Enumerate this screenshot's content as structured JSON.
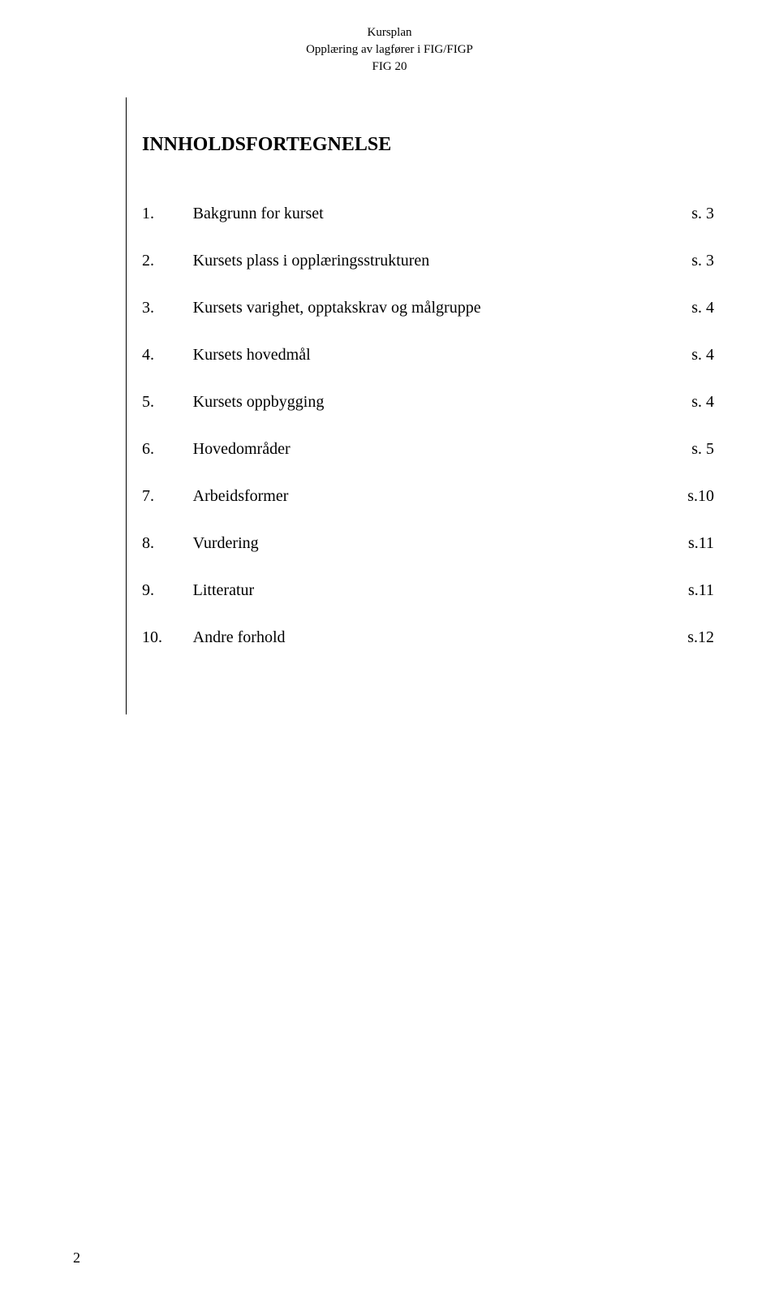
{
  "header": {
    "line1": "Kursplan",
    "line2": "Opplæring av lagfører i FIG/FIGP",
    "line3": "FIG 20"
  },
  "title": "INNHOLDSFORTEGNELSE",
  "toc": [
    {
      "num": "1.",
      "desc": "Bakgrunn for kurset",
      "page": "s. 3"
    },
    {
      "num": "2.",
      "desc": "Kursets plass i opplæringsstrukturen",
      "page": "s. 3"
    },
    {
      "num": "3.",
      "desc": "Kursets varighet, opptakskrav og målgruppe",
      "page": "s. 4"
    },
    {
      "num": "4.",
      "desc": "Kursets hovedmål",
      "page": "s. 4"
    },
    {
      "num": "5.",
      "desc": "Kursets oppbygging",
      "page": "s. 4"
    },
    {
      "num": "6.",
      "desc": "Hovedområder",
      "page": "s. 5"
    },
    {
      "num": "7.",
      "desc": "Arbeidsformer",
      "page": "s.10"
    },
    {
      "num": "8.",
      "desc": "Vurdering",
      "page": "s.11"
    },
    {
      "num": "9.",
      "desc": "Litteratur",
      "page": "s.11"
    },
    {
      "num": "10.",
      "desc": "Andre forhold",
      "page": "s.12"
    }
  ],
  "page_number": "2",
  "styling": {
    "background_color": "#ffffff",
    "text_color": "#000000",
    "font_family": "Times New Roman",
    "header_fontsize": 15,
    "title_fontsize": 24,
    "body_fontsize": 20,
    "divider_color": "#000000"
  }
}
